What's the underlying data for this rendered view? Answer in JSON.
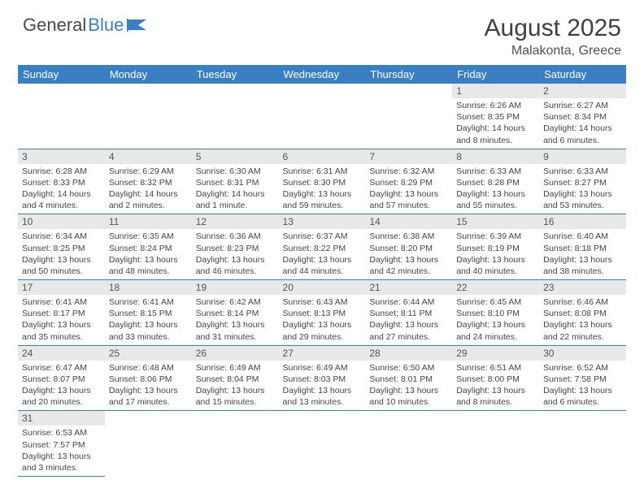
{
  "logo": {
    "part1": "General",
    "part2": "Blue"
  },
  "title": "August 2025",
  "location": "Malakonta, Greece",
  "colors": {
    "header_bg": "#3a7fc4",
    "header_text": "#ffffff",
    "daynum_bg": "#e8e8e8",
    "cell_border": "#3a7fc4",
    "body_text": "#444444",
    "title_text": "#404040"
  },
  "weekdays": [
    "Sunday",
    "Monday",
    "Tuesday",
    "Wednesday",
    "Thursday",
    "Friday",
    "Saturday"
  ],
  "first_weekday_index": 5,
  "days": [
    {
      "n": 1,
      "sunrise": "6:26 AM",
      "sunset": "8:35 PM",
      "dl": "14 hours and 8 minutes."
    },
    {
      "n": 2,
      "sunrise": "6:27 AM",
      "sunset": "8:34 PM",
      "dl": "14 hours and 6 minutes."
    },
    {
      "n": 3,
      "sunrise": "6:28 AM",
      "sunset": "8:33 PM",
      "dl": "14 hours and 4 minutes."
    },
    {
      "n": 4,
      "sunrise": "6:29 AM",
      "sunset": "8:32 PM",
      "dl": "14 hours and 2 minutes."
    },
    {
      "n": 5,
      "sunrise": "6:30 AM",
      "sunset": "8:31 PM",
      "dl": "14 hours and 1 minute."
    },
    {
      "n": 6,
      "sunrise": "6:31 AM",
      "sunset": "8:30 PM",
      "dl": "13 hours and 59 minutes."
    },
    {
      "n": 7,
      "sunrise": "6:32 AM",
      "sunset": "8:29 PM",
      "dl": "13 hours and 57 minutes."
    },
    {
      "n": 8,
      "sunrise": "6:33 AM",
      "sunset": "8:28 PM",
      "dl": "13 hours and 55 minutes."
    },
    {
      "n": 9,
      "sunrise": "6:33 AM",
      "sunset": "8:27 PM",
      "dl": "13 hours and 53 minutes."
    },
    {
      "n": 10,
      "sunrise": "6:34 AM",
      "sunset": "8:25 PM",
      "dl": "13 hours and 50 minutes."
    },
    {
      "n": 11,
      "sunrise": "6:35 AM",
      "sunset": "8:24 PM",
      "dl": "13 hours and 48 minutes."
    },
    {
      "n": 12,
      "sunrise": "6:36 AM",
      "sunset": "8:23 PM",
      "dl": "13 hours and 46 minutes."
    },
    {
      "n": 13,
      "sunrise": "6:37 AM",
      "sunset": "8:22 PM",
      "dl": "13 hours and 44 minutes."
    },
    {
      "n": 14,
      "sunrise": "6:38 AM",
      "sunset": "8:20 PM",
      "dl": "13 hours and 42 minutes."
    },
    {
      "n": 15,
      "sunrise": "6:39 AM",
      "sunset": "8:19 PM",
      "dl": "13 hours and 40 minutes."
    },
    {
      "n": 16,
      "sunrise": "6:40 AM",
      "sunset": "8:18 PM",
      "dl": "13 hours and 38 minutes."
    },
    {
      "n": 17,
      "sunrise": "6:41 AM",
      "sunset": "8:17 PM",
      "dl": "13 hours and 35 minutes."
    },
    {
      "n": 18,
      "sunrise": "6:41 AM",
      "sunset": "8:15 PM",
      "dl": "13 hours and 33 minutes."
    },
    {
      "n": 19,
      "sunrise": "6:42 AM",
      "sunset": "8:14 PM",
      "dl": "13 hours and 31 minutes."
    },
    {
      "n": 20,
      "sunrise": "6:43 AM",
      "sunset": "8:13 PM",
      "dl": "13 hours and 29 minutes."
    },
    {
      "n": 21,
      "sunrise": "6:44 AM",
      "sunset": "8:11 PM",
      "dl": "13 hours and 27 minutes."
    },
    {
      "n": 22,
      "sunrise": "6:45 AM",
      "sunset": "8:10 PM",
      "dl": "13 hours and 24 minutes."
    },
    {
      "n": 23,
      "sunrise": "6:46 AM",
      "sunset": "8:08 PM",
      "dl": "13 hours and 22 minutes."
    },
    {
      "n": 24,
      "sunrise": "6:47 AM",
      "sunset": "8:07 PM",
      "dl": "13 hours and 20 minutes."
    },
    {
      "n": 25,
      "sunrise": "6:48 AM",
      "sunset": "8:06 PM",
      "dl": "13 hours and 17 minutes."
    },
    {
      "n": 26,
      "sunrise": "6:49 AM",
      "sunset": "8:04 PM",
      "dl": "13 hours and 15 minutes."
    },
    {
      "n": 27,
      "sunrise": "6:49 AM",
      "sunset": "8:03 PM",
      "dl": "13 hours and 13 minutes."
    },
    {
      "n": 28,
      "sunrise": "6:50 AM",
      "sunset": "8:01 PM",
      "dl": "13 hours and 10 minutes."
    },
    {
      "n": 29,
      "sunrise": "6:51 AM",
      "sunset": "8:00 PM",
      "dl": "13 hours and 8 minutes."
    },
    {
      "n": 30,
      "sunrise": "6:52 AM",
      "sunset": "7:58 PM",
      "dl": "13 hours and 6 minutes."
    },
    {
      "n": 31,
      "sunrise": "6:53 AM",
      "sunset": "7:57 PM",
      "dl": "13 hours and 3 minutes."
    }
  ],
  "labels": {
    "sunrise": "Sunrise:",
    "sunset": "Sunset:",
    "daylight": "Daylight:"
  }
}
